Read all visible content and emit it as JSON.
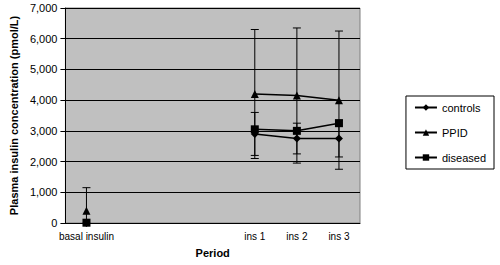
{
  "chart_data": {
    "type": "line",
    "x_label": "Period",
    "y_label": "Plasma insulin concentration (pmol/L)",
    "categories": [
      "basal insulin",
      null,
      null,
      null,
      "ins 1",
      "ins 2",
      "ins 3"
    ],
    "series": [
      {
        "name": "controls",
        "color": "#000000",
        "marker": "diamond",
        "values": [
          0,
          null,
          null,
          null,
          2900,
          2750,
          2750
        ],
        "errors": [
          null,
          null,
          null,
          null,
          700,
          500,
          600
        ]
      },
      {
        "name": "PPID",
        "color": "#000000",
        "marker": "triangle",
        "values": [
          400,
          null,
          null,
          null,
          4200,
          4150,
          4000
        ],
        "errors": [
          750,
          null,
          null,
          null,
          2100,
          2200,
          2250
        ]
      },
      {
        "name": "diseased",
        "color": "#000000",
        "marker": "square",
        "values": [
          10,
          null,
          null,
          null,
          3050,
          3000,
          3250
        ]
      }
    ],
    "ylim": [
      0,
      7000
    ],
    "yticks": [
      0,
      1000,
      2000,
      3000,
      4000,
      5000,
      6000,
      7000
    ],
    "grid": true,
    "legend": "right"
  }
}
